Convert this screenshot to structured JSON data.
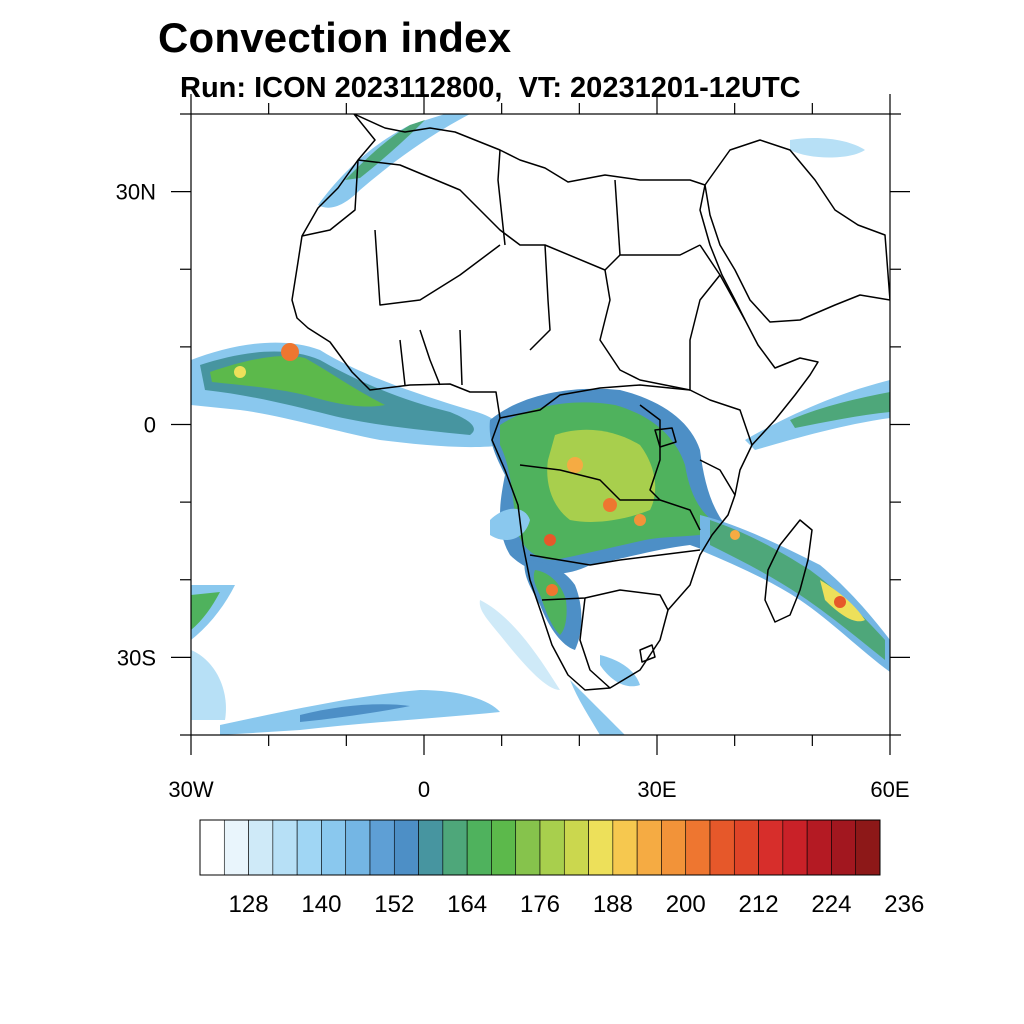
{
  "title": "Convection index",
  "subtitle": "Run: ICON 2023112800,  VT: 20231201-12UTC",
  "map": {
    "lon_range": [
      -30,
      60
    ],
    "lat_range": [
      -40,
      40
    ],
    "lon_labels": [
      {
        "lon": -30,
        "text": "30W"
      },
      {
        "lon": 0,
        "text": "0"
      },
      {
        "lon": 30,
        "text": "30E"
      },
      {
        "lon": 60,
        "text": "60E"
      }
    ],
    "lat_labels": [
      {
        "lat": 30,
        "text": "30N"
      },
      {
        "lat": 0,
        "text": "0"
      },
      {
        "lat": -30,
        "text": "30S"
      }
    ]
  },
  "colorbar": {
    "colors": [
      "#ffffff",
      "#e9f5fc",
      "#cfeaf8",
      "#b7e0f6",
      "#a0d6f4",
      "#8ac8ee",
      "#74b6e4",
      "#5e9fd5",
      "#4d8fc6",
      "#4795a0",
      "#4ea77a",
      "#4fb25d",
      "#5cb94b",
      "#86c34c",
      "#a8cf4d",
      "#cbd74e",
      "#ede05a",
      "#f6c84f",
      "#f5ab43",
      "#f29339",
      "#ee7630",
      "#e6582a",
      "#df4428",
      "#d72e2b",
      "#c92128",
      "#b41a23",
      "#a2171f",
      "#8d1818"
    ],
    "labels": [
      "128",
      "140",
      "152",
      "164",
      "176",
      "188",
      "200",
      "212",
      "224",
      "236"
    ],
    "label_start_index": 2,
    "label_step": 3
  },
  "colors": {
    "axis": "#000000",
    "coast": "#000000"
  }
}
